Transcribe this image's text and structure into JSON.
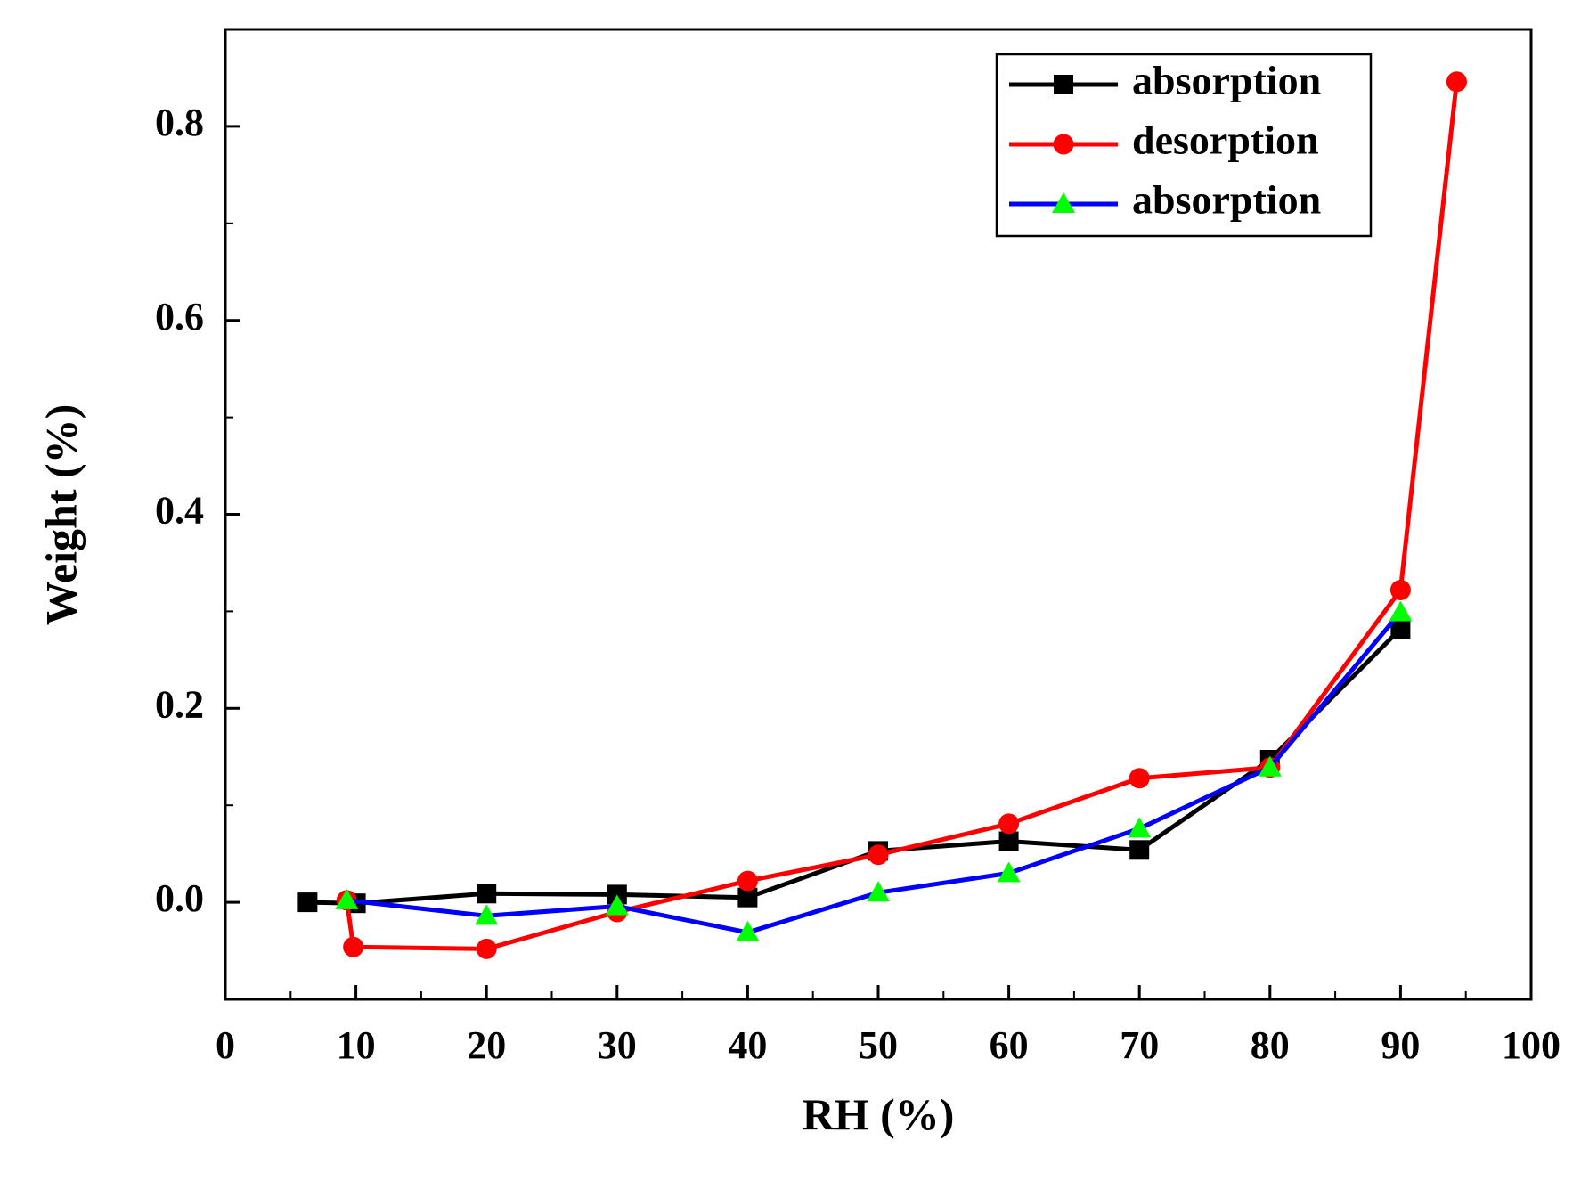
{
  "chart_data": {
    "type": "line",
    "title": "",
    "xlabel": "RH (%)",
    "ylabel": "Weight (%)",
    "xlim": [
      0,
      100
    ],
    "ylim": [
      -0.1,
      0.9
    ],
    "x_ticks": [
      0,
      10,
      20,
      30,
      40,
      50,
      60,
      70,
      80,
      90,
      100
    ],
    "x_tick_labels": [
      "0",
      "10",
      "20",
      "30",
      "40",
      "50",
      "60",
      "70",
      "80",
      "90",
      "100"
    ],
    "y_ticks": [
      0.0,
      0.2,
      0.4,
      0.6,
      0.8
    ],
    "y_tick_labels": [
      "0.0",
      "0.2",
      "0.4",
      "0.6",
      "0.8"
    ],
    "grid": false,
    "legend_position": "top-right",
    "series": [
      {
        "name": "absorption",
        "color": "#000000",
        "marker": "square",
        "marker_color": "#000000",
        "x": [
          6.3,
          10.0,
          20.0,
          30.0,
          40.0,
          50.0,
          60.0,
          70.0,
          80.0,
          90.0
        ],
        "y": [
          0.0,
          -0.001,
          0.009,
          0.008,
          0.005,
          0.053,
          0.063,
          0.054,
          0.147,
          0.282
        ]
      },
      {
        "name": "desorption",
        "color": "#ff0000",
        "marker": "circle",
        "marker_color": "#ff0000",
        "x": [
          9.3,
          9.8,
          20.0,
          30.0,
          40.0,
          50.0,
          60.0,
          70.0,
          80.0,
          90.0,
          94.3
        ],
        "y": [
          0.002,
          -0.046,
          -0.048,
          -0.01,
          0.022,
          0.049,
          0.081,
          0.128,
          0.139,
          0.322,
          0.846
        ]
      },
      {
        "name": "absorption",
        "color": "#0000ff",
        "marker": "triangle",
        "marker_color": "#00ff00",
        "x": [
          9.3,
          20.0,
          30.0,
          40.0,
          50.0,
          60.0,
          70.0,
          80.0,
          90.0
        ],
        "y": [
          0.002,
          -0.014,
          -0.004,
          -0.031,
          0.01,
          0.03,
          0.076,
          0.139,
          0.299
        ]
      }
    ]
  }
}
